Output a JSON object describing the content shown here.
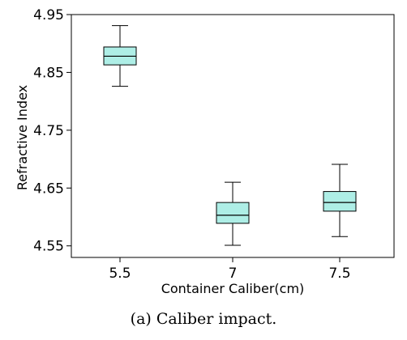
{
  "chart_data": {
    "type": "box",
    "categories": [
      "5.5",
      "7",
      "7.5"
    ],
    "boxes": [
      {
        "category": "5.5",
        "min": 4.826,
        "q1": 4.863,
        "median": 4.878,
        "q3": 4.894,
        "max": 4.931
      },
      {
        "category": "7",
        "min": 4.551,
        "q1": 4.589,
        "median": 4.603,
        "q3": 4.625,
        "max": 4.66
      },
      {
        "category": "7.5",
        "min": 4.566,
        "q1": 4.61,
        "median": 4.625,
        "q3": 4.644,
        "max": 4.691
      }
    ],
    "xlabel": "Container Caliber(cm)",
    "ylabel": "Refractive Index",
    "ylim": [
      4.53,
      4.95
    ],
    "yticks": [
      "4.55",
      "4.65",
      "4.75",
      "4.85",
      "4.95"
    ],
    "grid": false,
    "colors": {
      "box_fill": "#aeeee6",
      "stroke": "#000000"
    }
  },
  "caption": {
    "label": "(a)",
    "text": "Caliber impact."
  }
}
